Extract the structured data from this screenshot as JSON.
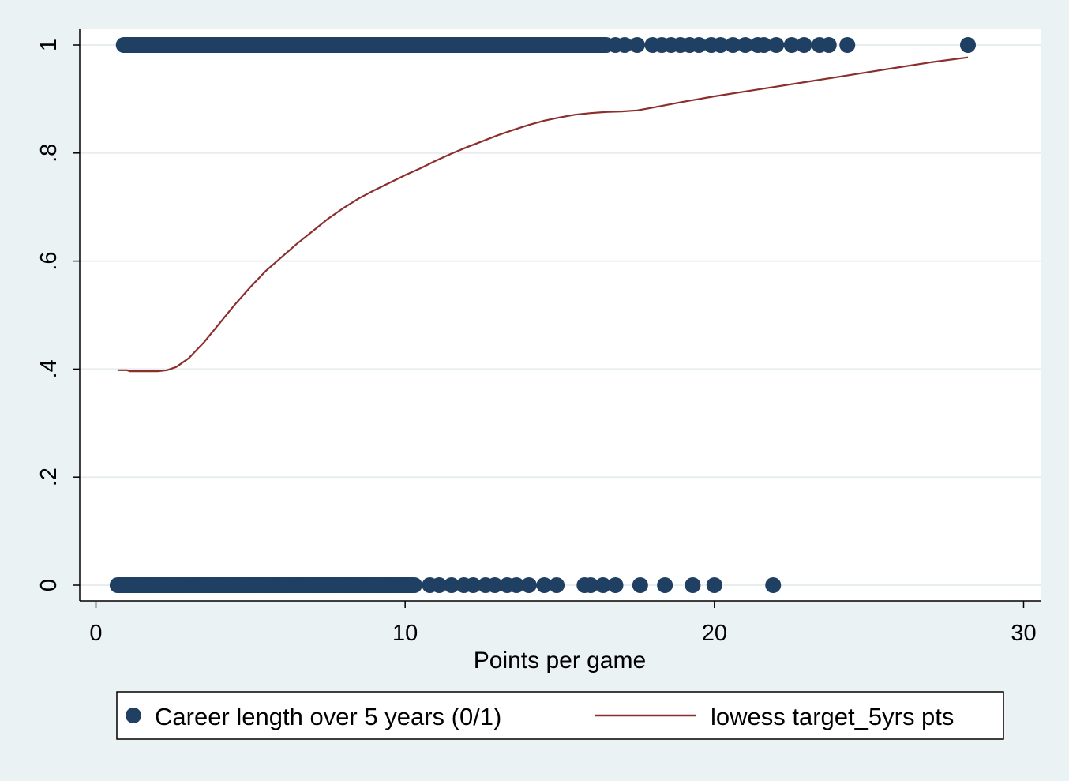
{
  "chart_data": {
    "type": "scatter",
    "title": "",
    "xlabel": "Points per game",
    "ylabel": "",
    "xlim": [
      0,
      30
    ],
    "ylim": [
      0,
      1
    ],
    "x_ticks": [
      {
        "value": 0,
        "label": "0"
      },
      {
        "value": 10,
        "label": "10"
      },
      {
        "value": 20,
        "label": "20"
      },
      {
        "value": 30,
        "label": "30"
      }
    ],
    "y_ticks": [
      {
        "value": 0,
        "label": "0"
      },
      {
        "value": 0.2,
        "label": ".2"
      },
      {
        "value": 0.4,
        "label": ".4"
      },
      {
        "value": 0.6,
        "label": ".6"
      },
      {
        "value": 0.8,
        "label": ".8"
      },
      {
        "value": 1,
        "label": "1"
      }
    ],
    "grid": "horizontal",
    "legend_position": "bottom",
    "colors": {
      "background": "#eaf2f3",
      "plot_background": "#ffffff",
      "gridline": "#e8eef0",
      "markers": "#1f3f63",
      "lowess_line": "#8b2e2e"
    },
    "series": [
      {
        "name": "Career length over 5 years (0/1)",
        "kind": "scatter",
        "marker": "filled-circle",
        "points": [
          {
            "x_range": [
              0.9,
              16.5
            ],
            "y": 1,
            "dense": true
          },
          {
            "x": 16.8,
            "y": 1
          },
          {
            "x": 17.1,
            "y": 1
          },
          {
            "x": 17.5,
            "y": 1
          },
          {
            "x": 18.0,
            "y": 1
          },
          {
            "x": 18.3,
            "y": 1
          },
          {
            "x": 18.6,
            "y": 1
          },
          {
            "x": 18.9,
            "y": 1
          },
          {
            "x": 19.2,
            "y": 1
          },
          {
            "x": 19.5,
            "y": 1
          },
          {
            "x": 19.9,
            "y": 1
          },
          {
            "x": 20.2,
            "y": 1
          },
          {
            "x": 20.6,
            "y": 1
          },
          {
            "x": 21.0,
            "y": 1
          },
          {
            "x": 21.4,
            "y": 1
          },
          {
            "x": 21.6,
            "y": 1
          },
          {
            "x": 22.0,
            "y": 1
          },
          {
            "x": 22.5,
            "y": 1
          },
          {
            "x": 22.9,
            "y": 1
          },
          {
            "x": 23.4,
            "y": 1
          },
          {
            "x": 23.7,
            "y": 1
          },
          {
            "x": 24.3,
            "y": 1
          },
          {
            "x": 28.2,
            "y": 1
          },
          {
            "x_range": [
              0.7,
              10.3
            ],
            "y": 0,
            "dense": true
          },
          {
            "x": 10.8,
            "y": 0
          },
          {
            "x": 11.1,
            "y": 0
          },
          {
            "x": 11.5,
            "y": 0
          },
          {
            "x": 11.9,
            "y": 0
          },
          {
            "x": 12.2,
            "y": 0
          },
          {
            "x": 12.6,
            "y": 0
          },
          {
            "x": 12.9,
            "y": 0
          },
          {
            "x": 13.3,
            "y": 0
          },
          {
            "x": 13.6,
            "y": 0
          },
          {
            "x": 14.0,
            "y": 0
          },
          {
            "x": 14.5,
            "y": 0
          },
          {
            "x": 14.9,
            "y": 0
          },
          {
            "x": 15.8,
            "y": 0
          },
          {
            "x": 16.0,
            "y": 0
          },
          {
            "x": 16.4,
            "y": 0
          },
          {
            "x": 16.8,
            "y": 0
          },
          {
            "x": 17.6,
            "y": 0
          },
          {
            "x": 18.4,
            "y": 0
          },
          {
            "x": 19.3,
            "y": 0
          },
          {
            "x": 20.0,
            "y": 0
          },
          {
            "x": 21.9,
            "y": 0
          }
        ]
      },
      {
        "name": "lowess target_5yrs pts",
        "kind": "line",
        "points": [
          [
            0.7,
            0.398
          ],
          [
            1.0,
            0.398
          ],
          [
            1.1,
            0.396
          ],
          [
            1.5,
            0.396
          ],
          [
            2.0,
            0.396
          ],
          [
            2.3,
            0.398
          ],
          [
            2.6,
            0.404
          ],
          [
            3.0,
            0.42
          ],
          [
            3.5,
            0.45
          ],
          [
            4.0,
            0.485
          ],
          [
            4.5,
            0.52
          ],
          [
            5.0,
            0.552
          ],
          [
            5.5,
            0.582
          ],
          [
            6.0,
            0.607
          ],
          [
            6.5,
            0.632
          ],
          [
            7.0,
            0.655
          ],
          [
            7.5,
            0.678
          ],
          [
            8.0,
            0.698
          ],
          [
            8.5,
            0.716
          ],
          [
            9.0,
            0.731
          ],
          [
            9.5,
            0.745
          ],
          [
            10.0,
            0.759
          ],
          [
            10.5,
            0.772
          ],
          [
            11.0,
            0.786
          ],
          [
            11.5,
            0.799
          ],
          [
            12.0,
            0.811
          ],
          [
            12.5,
            0.822
          ],
          [
            13.0,
            0.833
          ],
          [
            13.5,
            0.843
          ],
          [
            14.0,
            0.852
          ],
          [
            14.5,
            0.86
          ],
          [
            15.0,
            0.866
          ],
          [
            15.5,
            0.871
          ],
          [
            16.0,
            0.874
          ],
          [
            16.5,
            0.876
          ],
          [
            17.0,
            0.877
          ],
          [
            17.5,
            0.879
          ],
          [
            18.0,
            0.884
          ],
          [
            19.0,
            0.895
          ],
          [
            20.0,
            0.905
          ],
          [
            21.0,
            0.914
          ],
          [
            22.0,
            0.923
          ],
          [
            23.0,
            0.932
          ],
          [
            24.0,
            0.941
          ],
          [
            25.0,
            0.95
          ],
          [
            26.0,
            0.959
          ],
          [
            27.0,
            0.968
          ],
          [
            28.2,
            0.977
          ]
        ]
      }
    ]
  }
}
